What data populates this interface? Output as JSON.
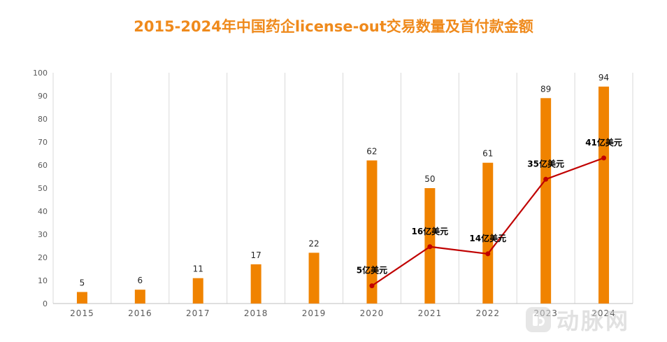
{
  "title": "2015-2024年中国药企license-out交易数量及首付款金额",
  "watermark": "动脉网",
  "chart_data": {
    "type": "bar",
    "categories": [
      "2015",
      "2016",
      "2017",
      "2018",
      "2019",
      "2020",
      "2021",
      "2022",
      "2023",
      "2024"
    ],
    "series": [
      {
        "values": [
          5,
          6,
          11,
          17,
          22,
          62,
          50,
          61,
          89,
          94
        ],
        "color": "#f08300"
      }
    ],
    "line_series": {
      "type": "line",
      "categories": [
        "2020",
        "2021",
        "2022",
        "2023",
        "2024"
      ],
      "values": [
        5,
        16,
        14,
        35,
        41
      ],
      "labels": [
        "5亿美元",
        "16亿美元",
        "14亿美元",
        "35亿美元",
        "41亿美元"
      ],
      "color": "#c00000"
    },
    "ylim": [
      0,
      100
    ],
    "yticks": [
      0,
      10,
      20,
      30,
      40,
      50,
      60,
      70,
      80,
      90,
      100
    ],
    "grid": "vertical",
    "legend": "none"
  }
}
